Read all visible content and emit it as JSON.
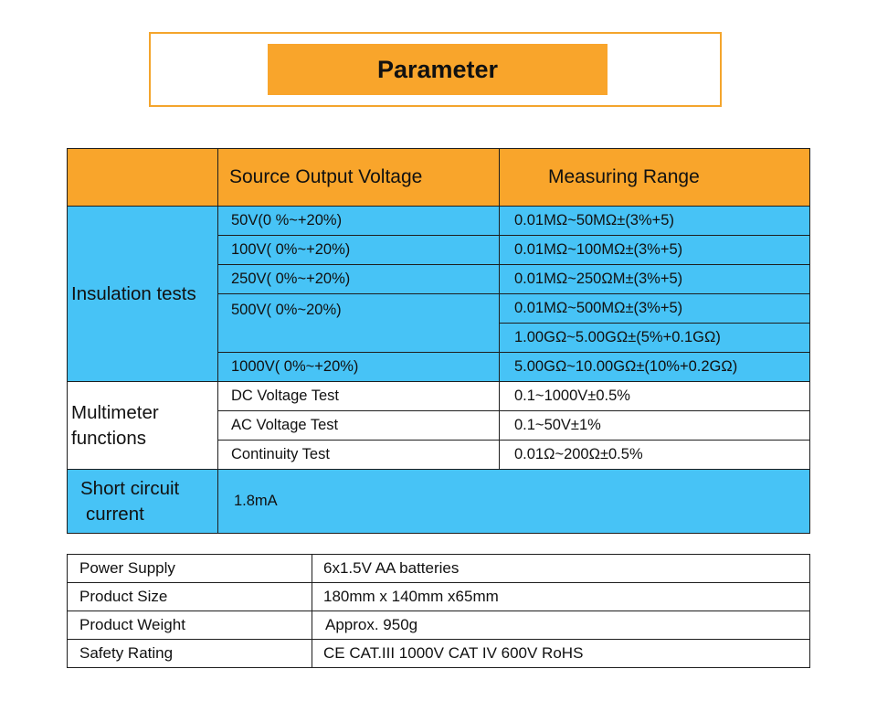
{
  "title": "Parameter",
  "header": {
    "col1": "",
    "col2": "Source Output Voltage",
    "col3": "Measuring Range"
  },
  "insulation": {
    "category": "Insulation tests",
    "rows": [
      {
        "voltage": "50V(0 %~+20%)",
        "range": "0.01MΩ~50MΩ±(3%+5)"
      },
      {
        "voltage": "100V( 0%~+20%)",
        "range": "0.01MΩ~100MΩ±(3%+5)"
      },
      {
        "voltage": "250V( 0%~+20%)",
        "range": "0.01MΩ~250ΩM±(3%+5)"
      },
      {
        "voltage": "500V( 0%~20%)",
        "range": "0.01MΩ~500MΩ±(3%+5)",
        "range2": "1.00GΩ~5.00GΩ±(5%+0.1GΩ)"
      },
      {
        "voltage": "1000V( 0%~+20%)",
        "range": "5.00GΩ~10.00GΩ±(10%+0.2GΩ)"
      }
    ]
  },
  "multimeter": {
    "category_line1": "Multimeter",
    "category_line2": "functions",
    "rows": [
      {
        "test": "DC Voltage Test",
        "range": "0.1~1000V±0.5%"
      },
      {
        "test": "AC Voltage Test",
        "range": "0.1~50V±1%"
      },
      {
        "test": "Continuity Test",
        "range": "0.01Ω~200Ω±0.5%"
      }
    ]
  },
  "short_circuit": {
    "category_line1": "Short circuit",
    "category_line2": "current",
    "value": "1.8mA"
  },
  "specs": [
    {
      "label": "Power Supply",
      "value": "6x1.5V AA batteries"
    },
    {
      "label": "Product Size",
      "value": "180mm x 140mm x65mm"
    },
    {
      "label": "Product Weight",
      "value": "Approx. 950g"
    },
    {
      "label": "Safety Rating",
      "value": "CE CAT.III 1000V  CAT IV 600V RoHS"
    }
  ],
  "colors": {
    "orange": "#f9a52b",
    "blue": "#47c3f6"
  }
}
